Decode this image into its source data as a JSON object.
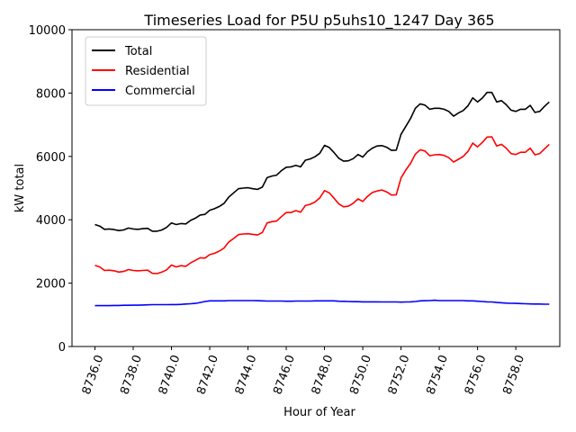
{
  "chart_data": {
    "type": "line",
    "title": "Timeseries Load for P5U p5uhs10_1247  Day 365",
    "xlabel": "Hour of Year",
    "ylabel": "kW total",
    "xlim": [
      8734.8,
      8760.3
    ],
    "ylim": [
      0,
      10000
    ],
    "x_ticks": [
      8736,
      8738,
      8740,
      8742,
      8744,
      8746,
      8748,
      8750,
      8752,
      8754,
      8756,
      8758
    ],
    "x_tick_labels": [
      "8736.0",
      "8738.0",
      "8740.0",
      "8742.0",
      "8744.0",
      "8746.0",
      "8748.0",
      "8750.0",
      "8752.0",
      "8754.0",
      "8756.0",
      "8758.0"
    ],
    "y_ticks": [
      0,
      2000,
      4000,
      6000,
      8000,
      10000
    ],
    "y_tick_labels": [
      "0",
      "2000",
      "4000",
      "6000",
      "8000",
      "10000"
    ],
    "grid": false,
    "legend_position": "top-left",
    "x": [
      8736.0,
      8736.25,
      8736.5,
      8736.75,
      8737.0,
      8737.25,
      8737.5,
      8737.75,
      8738.0,
      8738.25,
      8738.5,
      8738.75,
      8739.0,
      8739.25,
      8739.5,
      8739.75,
      8740.0,
      8740.25,
      8740.5,
      8740.75,
      8741.0,
      8741.25,
      8741.5,
      8741.75,
      8742.0,
      8742.25,
      8742.5,
      8742.75,
      8743.0,
      8743.25,
      8743.5,
      8743.75,
      8744.0,
      8744.25,
      8744.5,
      8744.75,
      8745.0,
      8745.25,
      8745.5,
      8745.75,
      8746.0,
      8746.25,
      8746.5,
      8746.75,
      8747.0,
      8747.25,
      8747.5,
      8747.75,
      8748.0,
      8748.25,
      8748.5,
      8748.75,
      8749.0,
      8749.25,
      8749.5,
      8749.75,
      8750.0,
      8750.25,
      8750.5,
      8750.75,
      8751.0,
      8751.25,
      8751.5,
      8751.75,
      8752.0,
      8752.25,
      8752.5,
      8752.75,
      8753.0,
      8753.25,
      8753.5,
      8753.75,
      8754.0,
      8754.25,
      8754.5,
      8754.75,
      8755.0,
      8755.25,
      8755.5,
      8755.75,
      8756.0,
      8756.25,
      8756.5,
      8756.75,
      8757.0,
      8757.25,
      8757.5,
      8757.75,
      8758.0,
      8758.25,
      8758.5,
      8758.75,
      8759.0,
      8759.25,
      8759.5,
      8759.75
    ],
    "series": [
      {
        "name": "Total",
        "color": "#000000",
        "values": [
          3850,
          3800,
          3700,
          3710,
          3690,
          3660,
          3680,
          3740,
          3710,
          3700,
          3720,
          3730,
          3640,
          3640,
          3680,
          3760,
          3900,
          3850,
          3880,
          3870,
          3980,
          4050,
          4150,
          4170,
          4300,
          4350,
          4420,
          4520,
          4720,
          4850,
          4980,
          5000,
          5010,
          4980,
          4960,
          5030,
          5330,
          5380,
          5410,
          5550,
          5660,
          5670,
          5720,
          5670,
          5880,
          5920,
          5990,
          6100,
          6350,
          6280,
          6120,
          5940,
          5850,
          5860,
          5930,
          6060,
          5980,
          6150,
          6260,
          6330,
          6340,
          6290,
          6190,
          6200,
          6700,
          6950,
          7200,
          7520,
          7660,
          7620,
          7490,
          7520,
          7520,
          7490,
          7420,
          7270,
          7370,
          7450,
          7600,
          7850,
          7720,
          7840,
          8020,
          8020,
          7720,
          7760,
          7630,
          7460,
          7420,
          7490,
          7490,
          7610,
          7390,
          7420,
          7580,
          7720
        ]
      },
      {
        "name": "Residential",
        "color": "#ff0000",
        "values": [
          2560,
          2510,
          2400,
          2410,
          2390,
          2350,
          2370,
          2430,
          2400,
          2390,
          2400,
          2410,
          2310,
          2300,
          2350,
          2420,
          2570,
          2510,
          2550,
          2530,
          2640,
          2720,
          2800,
          2790,
          2900,
          2940,
          3010,
          3110,
          3300,
          3410,
          3530,
          3550,
          3560,
          3540,
          3520,
          3600,
          3900,
          3940,
          3960,
          4100,
          4230,
          4230,
          4290,
          4240,
          4450,
          4490,
          4560,
          4690,
          4920,
          4850,
          4680,
          4500,
          4410,
          4430,
          4520,
          4660,
          4580,
          4740,
          4860,
          4910,
          4940,
          4880,
          4780,
          4790,
          5320,
          5570,
          5780,
          6070,
          6210,
          6170,
          6020,
          6050,
          6060,
          6030,
          5960,
          5820,
          5910,
          6000,
          6160,
          6420,
          6300,
          6440,
          6610,
          6620,
          6330,
          6380,
          6260,
          6090,
          6060,
          6130,
          6130,
          6260,
          6050,
          6090,
          6240,
          6380
        ]
      },
      {
        "name": "Commercial",
        "color": "#0000ff",
        "values": [
          1290,
          1290,
          1290,
          1290,
          1295,
          1295,
          1300,
          1300,
          1305,
          1305,
          1310,
          1315,
          1320,
          1320,
          1320,
          1320,
          1325,
          1325,
          1330,
          1340,
          1350,
          1360,
          1390,
          1420,
          1440,
          1440,
          1440,
          1440,
          1450,
          1450,
          1450,
          1450,
          1450,
          1450,
          1445,
          1440,
          1435,
          1435,
          1435,
          1435,
          1430,
          1430,
          1435,
          1435,
          1435,
          1435,
          1440,
          1440,
          1440,
          1440,
          1440,
          1430,
          1425,
          1420,
          1415,
          1415,
          1410,
          1410,
          1410,
          1410,
          1405,
          1405,
          1405,
          1405,
          1400,
          1405,
          1410,
          1420,
          1440,
          1445,
          1450,
          1460,
          1450,
          1450,
          1450,
          1450,
          1450,
          1450,
          1440,
          1440,
          1430,
          1420,
          1410,
          1405,
          1390,
          1380,
          1370,
          1365,
          1360,
          1355,
          1350,
          1345,
          1340,
          1340,
          1335,
          1335
        ]
      }
    ]
  }
}
